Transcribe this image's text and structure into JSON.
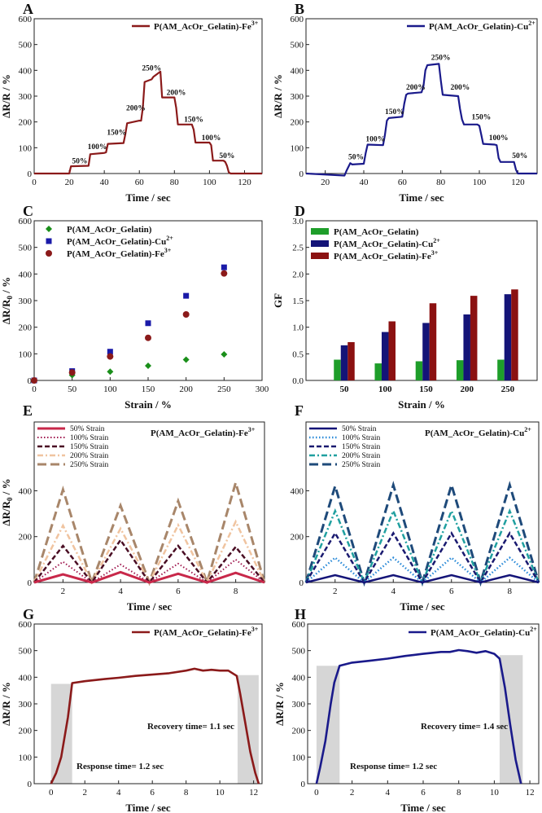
{
  "chart_data": [
    {
      "panel": "A",
      "type": "line",
      "title": "",
      "xlabel": "Time / sec",
      "ylabel": "ΔR/R / %",
      "xlim": [
        0,
        130
      ],
      "ylim": [
        0,
        600
      ],
      "xticks": [
        0,
        20,
        40,
        60,
        80,
        100,
        120
      ],
      "yticks": [
        0,
        100,
        200,
        300,
        400,
        500,
        600
      ],
      "legend": {
        "label": "P(AM_AcOr_Gelatin)-Fe",
        "sup": "3+",
        "position": "top-right"
      },
      "color": "#8b1a1a",
      "series": [
        {
          "name": "P(AM_AcOr_Gelatin)-Fe3+",
          "x": [
            0,
            20,
            21,
            31,
            32,
            40,
            41,
            42,
            51,
            52,
            53,
            60,
            61,
            62,
            63,
            67,
            68,
            72,
            73,
            80,
            81,
            82,
            90,
            91,
            92,
            100,
            101,
            102,
            108,
            109,
            110,
            111,
            112,
            130
          ],
          "y": [
            0,
            0,
            28,
            30,
            75,
            80,
            82,
            115,
            118,
            152,
            195,
            205,
            205,
            255,
            355,
            365,
            375,
            395,
            295,
            295,
            255,
            190,
            190,
            170,
            120,
            120,
            110,
            50,
            50,
            45,
            30,
            5,
            0,
            0
          ]
        }
      ],
      "annotations": [
        {
          "text": "50%",
          "x": 26,
          "y": 40
        },
        {
          "text": "100%",
          "x": 36,
          "y": 95
        },
        {
          "text": "150%",
          "x": 47,
          "y": 150
        },
        {
          "text": "200%",
          "x": 58,
          "y": 245
        },
        {
          "text": "250%",
          "x": 67,
          "y": 400
        },
        {
          "text": "200%",
          "x": 81,
          "y": 305
        },
        {
          "text": "150%",
          "x": 91,
          "y": 200
        },
        {
          "text": "100%",
          "x": 101,
          "y": 130
        },
        {
          "text": "50%",
          "x": 110,
          "y": 60
        }
      ]
    },
    {
      "panel": "B",
      "type": "line",
      "title": "",
      "xlabel": "Time / sec",
      "ylabel": "ΔR/R / %",
      "xlim": [
        10,
        130
      ],
      "ylim": [
        0,
        600
      ],
      "xticks": [
        20,
        40,
        60,
        80,
        100,
        120
      ],
      "yticks": [
        0,
        100,
        200,
        300,
        400,
        500,
        600
      ],
      "legend": {
        "label": "P(AM_AcOr_Gelatin)-Cu",
        "sup": "2+",
        "position": "top-right"
      },
      "color": "#1a1a8b",
      "series": [
        {
          "name": "P(AM_AcOr_Gelatin)-Cu2+",
          "x": [
            10,
            30,
            31,
            33,
            34,
            40,
            41,
            42,
            50,
            51,
            52,
            53,
            60,
            61,
            62,
            63,
            70,
            71,
            72,
            73,
            79,
            80,
            81,
            89,
            90,
            91,
            92,
            99,
            100,
            101,
            102,
            108,
            109,
            110,
            111,
            118,
            119,
            120,
            121,
            130
          ],
          "y": [
            0,
            -8,
            10,
            40,
            35,
            38,
            80,
            112,
            110,
            150,
            205,
            215,
            220,
            270,
            305,
            310,
            315,
            340,
            400,
            420,
            425,
            360,
            305,
            300,
            250,
            210,
            190,
            190,
            185,
            150,
            115,
            112,
            110,
            60,
            45,
            45,
            15,
            0,
            0,
            0
          ]
        }
      ],
      "annotations": [
        {
          "text": "50%",
          "x": 36,
          "y": 55
        },
        {
          "text": "100%",
          "x": 46,
          "y": 125
        },
        {
          "text": "150%",
          "x": 56,
          "y": 230
        },
        {
          "text": "200%",
          "x": 67,
          "y": 325
        },
        {
          "text": "250%",
          "x": 80,
          "y": 440
        },
        {
          "text": "200%",
          "x": 90,
          "y": 325
        },
        {
          "text": "150%",
          "x": 101,
          "y": 210
        },
        {
          "text": "100%",
          "x": 110,
          "y": 130
        },
        {
          "text": "50%",
          "x": 121,
          "y": 60
        }
      ]
    },
    {
      "panel": "C",
      "type": "scatter",
      "title": "",
      "xlabel": "Strain / %",
      "ylabel": "ΔR/R0 / %",
      "xlim": [
        0,
        300
      ],
      "ylim": [
        0,
        600
      ],
      "xticks": [
        0,
        50,
        100,
        150,
        200,
        250,
        300
      ],
      "yticks": [
        0,
        100,
        200,
        300,
        400,
        500,
        600
      ],
      "legend_position": "top-left",
      "series": [
        {
          "name": "P(AM_AcOr_Gelatin)",
          "sup": "",
          "marker": "diamond",
          "color": "#1a8f1a",
          "x": [
            0,
            50,
            100,
            150,
            200,
            250
          ],
          "y": [
            0,
            20,
            33,
            55,
            78,
            98
          ]
        },
        {
          "name": "P(AM_AcOr_Gelatin)-Cu",
          "sup": "2+",
          "marker": "square",
          "color": "#1a1aa8",
          "x": [
            0,
            50,
            100,
            150,
            200,
            250
          ],
          "y": [
            0,
            35,
            108,
            215,
            318,
            425
          ]
        },
        {
          "name": "P(AM_AcOr_Gelatin)-Fe",
          "sup": "3+",
          "marker": "circle",
          "color": "#8b1a1a",
          "x": [
            0,
            50,
            100,
            150,
            200,
            250
          ],
          "y": [
            0,
            30,
            90,
            160,
            248,
            402
          ]
        }
      ]
    },
    {
      "panel": "D",
      "type": "bar",
      "title": "",
      "xlabel": "Strain / %",
      "ylabel": "GF",
      "ylim": [
        0,
        3.0
      ],
      "yticks": [
        0.0,
        0.5,
        1.0,
        1.5,
        2.0,
        2.5,
        3.0
      ],
      "ytick_labels": [
        "0.0",
        "0.5",
        "1.0",
        "1.5",
        "2.0",
        "2.5",
        "3.0"
      ],
      "legend_position": "top-left",
      "categories": [
        "50",
        "100",
        "150",
        "200",
        "250"
      ],
      "series": [
        {
          "name": "P(AM_AcOr_Gelatin)",
          "sup": "",
          "color": "#1e9e2a",
          "values": [
            0.39,
            0.32,
            0.36,
            0.38,
            0.39
          ]
        },
        {
          "name": "P(AM_AcOr_Gelatin)-Cu",
          "sup": "2+",
          "color": "#141478",
          "values": [
            0.66,
            0.91,
            1.08,
            1.24,
            1.62
          ]
        },
        {
          "name": "P(AM_AcOr_Gelatin)-Fe",
          "sup": "3+",
          "color": "#8b1111",
          "values": [
            0.72,
            1.11,
            1.45,
            1.59,
            1.71
          ]
        }
      ]
    },
    {
      "panel": "E",
      "type": "line",
      "title": "",
      "xlabel": "Time / sec",
      "ylabel": "ΔR/R0 / %",
      "xlim": [
        1,
        9
      ],
      "ylim": [
        0,
        700
      ],
      "xticks": [
        2,
        4,
        6,
        8
      ],
      "yticks": [
        0,
        200,
        400
      ],
      "label": "P(AM_AcOr_Gelatin)-Fe",
      "sup": "3+",
      "cycle": {
        "valleys": [
          1,
          3,
          5,
          7,
          9
        ],
        "peaks": [
          2,
          4,
          6,
          8
        ]
      },
      "series": [
        {
          "name": "50% Strain",
          "color": "#c8284a",
          "dash": "solid",
          "width": 3,
          "peaks": [
            35,
            45,
            38,
            42
          ]
        },
        {
          "name": "100% Strain",
          "color": "#a01a50",
          "dash": "dot",
          "width": 2,
          "peaks": [
            90,
            78,
            82,
            100
          ]
        },
        {
          "name": "150% Strain",
          "color": "#4a0e24",
          "dash": "dash",
          "width": 2.5,
          "peaks": [
            160,
            185,
            160,
            155
          ]
        },
        {
          "name": "200% Strain",
          "color": "#f0c4a0",
          "dash": "dashdot",
          "width": 2.5,
          "peaks": [
            248,
            235,
            250,
            265
          ]
        },
        {
          "name": "250% Strain",
          "color": "#a8866a",
          "dash": "longdash",
          "width": 3,
          "peaks": [
            405,
            335,
            355,
            435
          ]
        }
      ]
    },
    {
      "panel": "F",
      "type": "line",
      "title": "",
      "xlabel": "Time / sec",
      "ylabel": "",
      "xlim": [
        1,
        9
      ],
      "ylim": [
        0,
        700
      ],
      "xticks": [
        2,
        4,
        6,
        8
      ],
      "yticks": [
        0,
        200,
        400
      ],
      "label": "P(AM_AcOr_Gelatin)-Cu",
      "sup": "2+",
      "cycle": {
        "valleys": [
          1,
          3,
          5,
          7,
          9
        ],
        "peaks": [
          2,
          4,
          6,
          8
        ]
      },
      "series": [
        {
          "name": "50% Strain",
          "color": "#141478",
          "dash": "solid",
          "width": 2.5,
          "peaks": [
            32,
            32,
            32,
            32
          ]
        },
        {
          "name": "100% Strain",
          "color": "#2a8ad8",
          "dash": "dot",
          "width": 2.5,
          "peaks": [
            108,
            108,
            108,
            108
          ]
        },
        {
          "name": "150% Strain",
          "color": "#1a1a70",
          "dash": "dash",
          "width": 2.5,
          "peaks": [
            215,
            215,
            215,
            215
          ]
        },
        {
          "name": "200% Strain",
          "color": "#20a0a0",
          "dash": "dashdot",
          "width": 2.5,
          "peaks": [
            312,
            312,
            312,
            312
          ]
        },
        {
          "name": "250% Strain",
          "color": "#1e4a7a",
          "dash": "longdash",
          "width": 3,
          "peaks": [
            420,
            425,
            425,
            425
          ]
        }
      ]
    },
    {
      "panel": "G",
      "type": "line",
      "title": "",
      "xlabel": "Time / sec",
      "ylabel": "ΔR/R / %",
      "xlim": [
        -1,
        12.5
      ],
      "ylim": [
        0,
        600
      ],
      "xticks": [
        0,
        2,
        4,
        6,
        8,
        10,
        12
      ],
      "yticks": [
        0,
        100,
        200,
        300,
        400,
        500,
        600
      ],
      "legend": {
        "label": "P(AM_AcOr_Gelatin)-Fe",
        "sup": "3+",
        "position": "top-right"
      },
      "color": "#8b1a1a",
      "shaded": [
        {
          "x0": 0,
          "x1": 1.25,
          "y": 375
        },
        {
          "x0": 11.05,
          "x1": 12.3,
          "y": 408
        }
      ],
      "response_text": "Response time= 1.2 sec",
      "recovery_text": "Recovery time= 1.1 sec",
      "series": [
        {
          "name": "P(AM_AcOr_Gelatin)-Fe3+",
          "x": [
            0,
            0.3,
            0.6,
            1.0,
            1.25,
            2,
            3,
            4,
            5,
            6,
            7,
            8,
            8.5,
            9,
            9.5,
            10,
            10.5,
            11,
            11.2,
            11.5,
            11.8,
            12.1,
            12.3
          ],
          "y": [
            0,
            40,
            100,
            250,
            378,
            385,
            392,
            398,
            405,
            410,
            415,
            425,
            432,
            425,
            428,
            425,
            425,
            405,
            340,
            230,
            120,
            40,
            0
          ]
        }
      ]
    },
    {
      "panel": "H",
      "type": "line",
      "title": "",
      "xlabel": "Time / sec",
      "ylabel": "ΔR/R / %",
      "xlim": [
        -0.5,
        12.5
      ],
      "ylim": [
        0,
        600
      ],
      "xticks": [
        0,
        2,
        4,
        6,
        8,
        10,
        12
      ],
      "yticks": [
        0,
        100,
        200,
        300,
        400,
        500,
        600
      ],
      "legend": {
        "label": "P(AM_AcOr_Gelatin)-Cu",
        "sup": "2+",
        "position": "top-right"
      },
      "color": "#1a1a8b",
      "shaded": [
        {
          "x0": 0,
          "x1": 1.3,
          "y": 443
        },
        {
          "x0": 10.3,
          "x1": 11.6,
          "y": 483
        }
      ],
      "response_text": "Response time= 1.2 sec",
      "recovery_text": "Recovery time= 1.4 sec",
      "series": [
        {
          "name": "P(AM_AcOr_Gelatin)-Cu2+",
          "x": [
            0,
            0.2,
            0.5,
            0.8,
            1.0,
            1.3,
            2,
            3,
            4,
            5,
            6,
            7,
            7.5,
            8,
            8.5,
            9,
            9.5,
            10,
            10.3,
            10.6,
            10.9,
            11.2,
            11.5
          ],
          "y": [
            0,
            60,
            160,
            300,
            380,
            443,
            455,
            462,
            470,
            480,
            488,
            495,
            495,
            502,
            498,
            492,
            498,
            488,
            470,
            360,
            220,
            90,
            0
          ]
        }
      ]
    }
  ]
}
